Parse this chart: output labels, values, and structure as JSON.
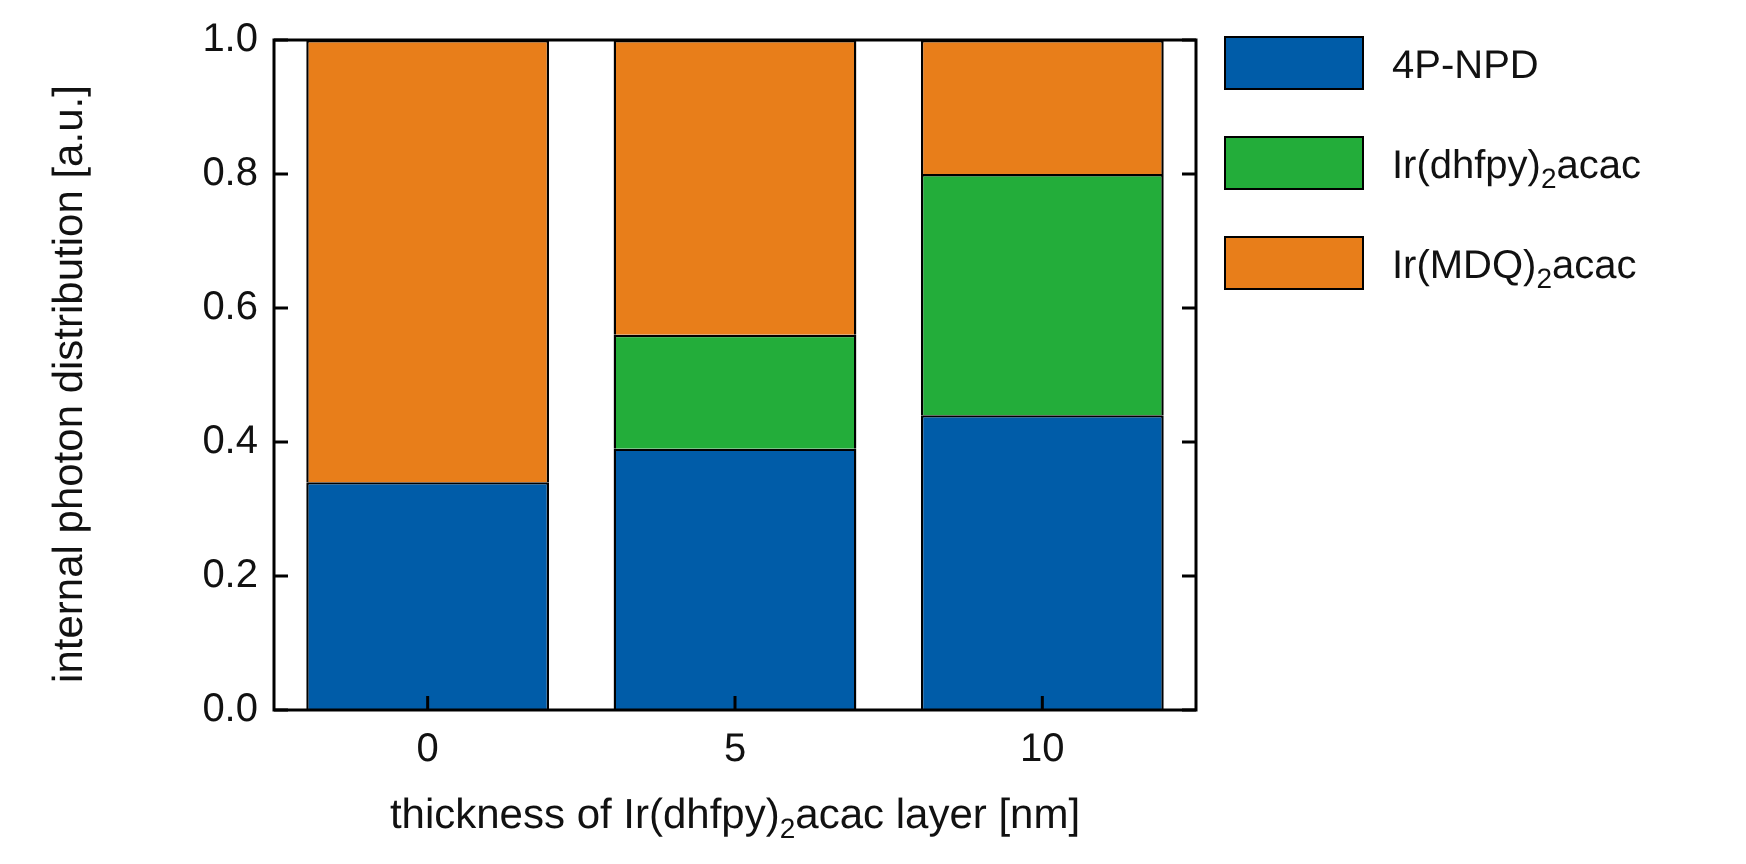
{
  "chart_data": {
    "type": "bar",
    "stacked": true,
    "xlabel": "thickness of Ir(dhfpy)$_{2}$acac layer [nm]",
    "ylabel": "internal photon distribution [a.u.]",
    "categories": [
      "0",
      "5",
      "10"
    ],
    "series": [
      {
        "name": "4P-NPD",
        "color": "#005ca8",
        "values": [
          0.34,
          0.39,
          0.44
        ]
      },
      {
        "name": "Ir(dhfpy)$_{2}$acac",
        "color": "#23ad3a",
        "values": [
          0,
          0.17,
          0.36
        ]
      },
      {
        "name": "Ir(MDQ)$_{2}$acac",
        "color": "#e87e1a",
        "values": [
          0.66,
          0.44,
          0.2
        ]
      }
    ],
    "ylim": [
      0,
      1
    ],
    "yticks": [
      {
        "value": 0,
        "label": "0.0"
      },
      {
        "value": 0.2,
        "label": "0.2"
      },
      {
        "value": 0.4,
        "label": "0.4"
      },
      {
        "value": 0.6,
        "label": "0.6"
      },
      {
        "value": 0.8,
        "label": "0.8"
      },
      {
        "value": 1,
        "label": "1.0"
      }
    ],
    "grid": false,
    "legend": "right"
  }
}
